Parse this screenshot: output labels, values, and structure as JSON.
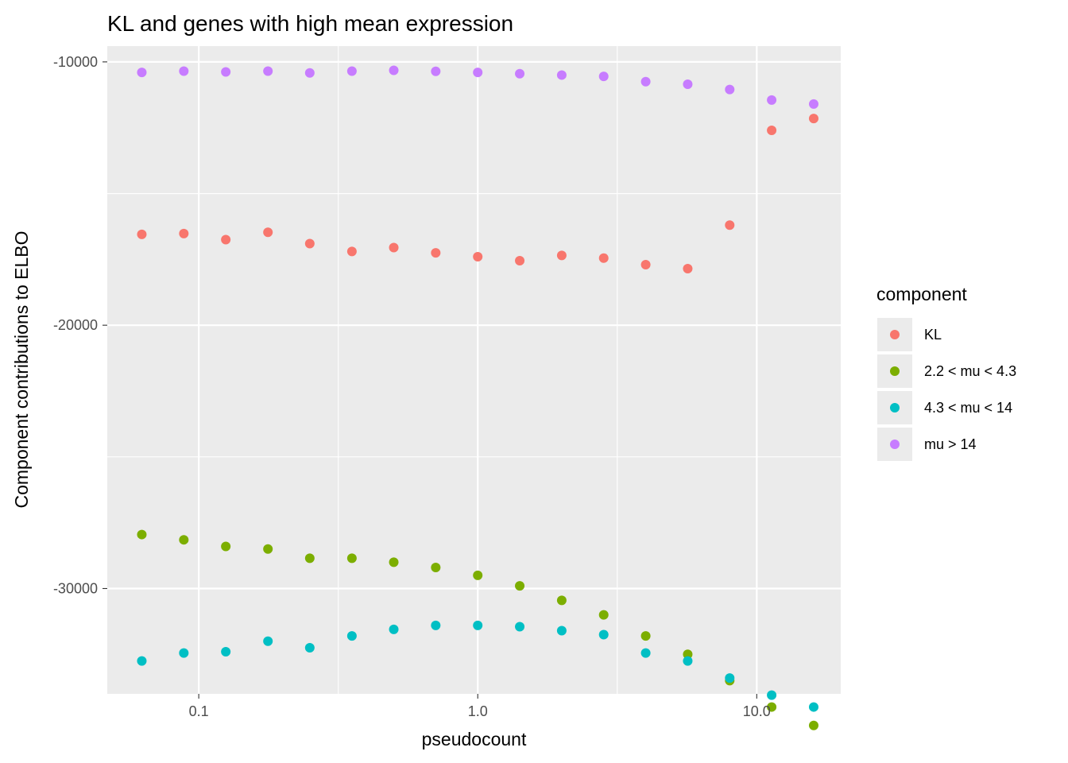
{
  "chart_data": {
    "type": "scatter",
    "title": "KL and genes with high mean expression",
    "xlabel": "pseudocount",
    "ylabel": "Component contributions to ELBO",
    "x_scale": "log10",
    "xlim": [
      0.047,
      20
    ],
    "ylim": [
      -34000,
      -9400
    ],
    "x_ticks": [
      0.1,
      1.0,
      10.0
    ],
    "x_tick_labels": [
      "0.1",
      "1.0",
      "10.0"
    ],
    "y_ticks": [
      -10000,
      -20000,
      -30000
    ],
    "y_tick_labels": [
      "-10000",
      "-20000",
      "-30000"
    ],
    "grid": true,
    "legend_title": "component",
    "legend_position": "right",
    "x": [
      0.0625,
      0.0884,
      0.125,
      0.177,
      0.25,
      0.354,
      0.5,
      0.707,
      1.0,
      1.414,
      2.0,
      2.828,
      4.0,
      5.657,
      8.0,
      11.31,
      16.0
    ],
    "series": [
      {
        "name": "KL",
        "color": "#F8766D",
        "values": [
          -16550,
          -16520,
          -16750,
          -16470,
          -16900,
          -17200,
          -17050,
          -17250,
          -17400,
          -17550,
          -17350,
          -17450,
          -17700,
          -17850,
          -16200,
          -12600,
          -12150
        ]
      },
      {
        "name": "2.2 < mu < 4.3",
        "color": "#7CAE00",
        "values": [
          -27950,
          -28150,
          -28400,
          -28500,
          -28850,
          -28850,
          -29000,
          -29200,
          -29500,
          -29900,
          -30450,
          -31000,
          -31800,
          -32500,
          -33500,
          -34500,
          -35200
        ]
      },
      {
        "name": "4.3 < mu < 14",
        "color": "#00BFC4",
        "values": [
          -32750,
          -32450,
          -32400,
          -32000,
          -32250,
          -31800,
          -31550,
          -31400,
          -31400,
          -31450,
          -31600,
          -31750,
          -32450,
          -32750,
          -33400,
          -34050,
          -34500
        ]
      },
      {
        "name": "mu > 14",
        "color": "#C77CFF",
        "values": [
          -10400,
          -10350,
          -10380,
          -10350,
          -10420,
          -10350,
          -10320,
          -10360,
          -10400,
          -10450,
          -10500,
          -10550,
          -10750,
          -10850,
          -11050,
          -11450,
          -11600
        ]
      }
    ]
  }
}
